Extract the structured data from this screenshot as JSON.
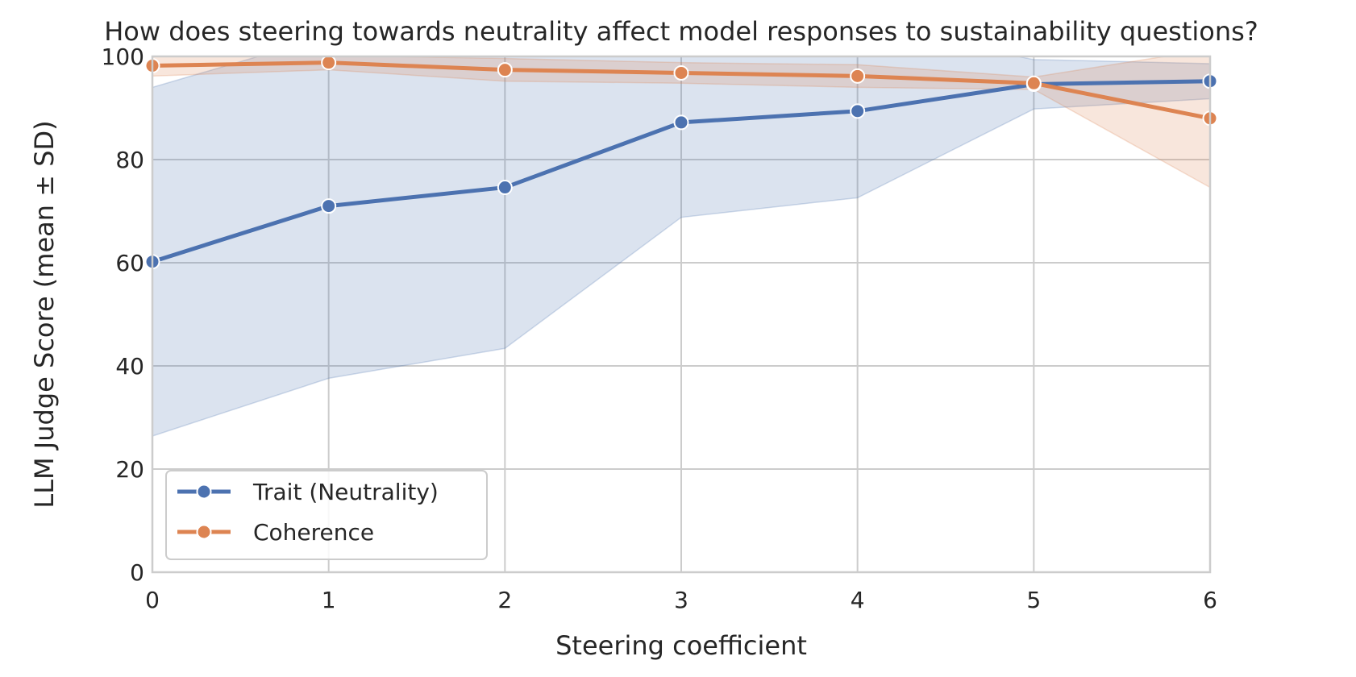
{
  "chart_data": {
    "type": "line",
    "title": "How does steering towards neutrality affect model responses to sustainability questions?",
    "xlabel": "Steering coefficient",
    "ylabel": "LLM Judge Score (mean ± SD)",
    "xlim": [
      0,
      6
    ],
    "ylim": [
      0,
      100
    ],
    "xticks": [
      0,
      1,
      2,
      3,
      4,
      5,
      6
    ],
    "yticks": [
      0,
      20,
      40,
      60,
      80,
      100
    ],
    "grid": true,
    "legend_position": "lower-left",
    "x": [
      0,
      1,
      2,
      3,
      4,
      5,
      6
    ],
    "series": [
      {
        "name": "Trait (Neutrality)",
        "color": "#4c72b0",
        "values": [
          60.2,
          71.0,
          74.6,
          87.2,
          89.4,
          94.6,
          95.2
        ],
        "sd_lower": [
          26.4,
          37.6,
          43.4,
          68.8,
          72.6,
          89.8,
          91.8
        ],
        "sd_upper": [
          94.0,
          104.0,
          105.0,
          105.6,
          106.0,
          99.4,
          98.6
        ]
      },
      {
        "name": "Coherence",
        "color": "#dd8452",
        "values": [
          98.2,
          98.8,
          97.4,
          96.8,
          96.2,
          94.8,
          88.0
        ],
        "sd_lower": [
          96.2,
          97.4,
          95.2,
          94.8,
          94.0,
          93.6,
          74.6
        ],
        "sd_upper": [
          100.2,
          100.2,
          99.6,
          98.8,
          98.4,
          96.0,
          101.4
        ]
      }
    ]
  }
}
